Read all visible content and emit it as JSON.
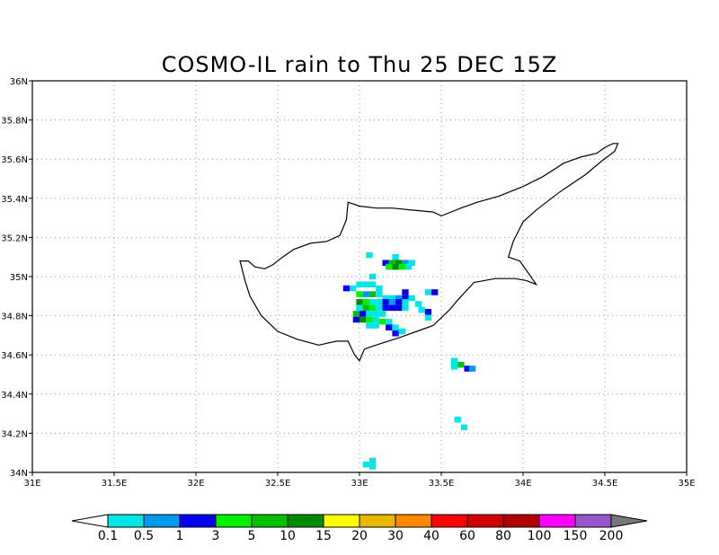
{
  "title": "COSMO-IL rain to Thu 25 DEC 15Z",
  "map": {
    "lon_range": [
      31,
      35
    ],
    "lat_range": [
      34,
      36
    ],
    "lon_ticks": [
      {
        "value": 31.0,
        "label": "31E"
      },
      {
        "value": 31.5,
        "label": "31.5E"
      },
      {
        "value": 32.0,
        "label": "32E"
      },
      {
        "value": 32.5,
        "label": "32.5E"
      },
      {
        "value": 33.0,
        "label": "33E"
      },
      {
        "value": 33.5,
        "label": "33.5E"
      },
      {
        "value": 34.0,
        "label": "34E"
      },
      {
        "value": 34.5,
        "label": "34.5E"
      },
      {
        "value": 35.0,
        "label": "35E"
      }
    ],
    "lat_ticks": [
      {
        "value": 34.0,
        "label": "34N"
      },
      {
        "value": 34.2,
        "label": "34.2N"
      },
      {
        "value": 34.4,
        "label": "34.4N"
      },
      {
        "value": 34.6,
        "label": "34.6N"
      },
      {
        "value": 34.8,
        "label": "34.8N"
      },
      {
        "value": 35.0,
        "label": "35N"
      },
      {
        "value": 35.2,
        "label": "35.2N"
      },
      {
        "value": 35.4,
        "label": "35.4N"
      },
      {
        "value": 35.6,
        "label": "35.6N"
      },
      {
        "value": 35.8,
        "label": "35.8N"
      },
      {
        "value": 36.0,
        "label": "36N"
      }
    ],
    "gridlines": true,
    "coastline": [
      [
        32.27,
        35.08
      ],
      [
        32.32,
        35.08
      ],
      [
        32.36,
        35.05
      ],
      [
        32.42,
        35.04
      ],
      [
        32.47,
        35.06
      ],
      [
        32.53,
        35.1
      ],
      [
        32.6,
        35.14
      ],
      [
        32.7,
        35.17
      ],
      [
        32.8,
        35.18
      ],
      [
        32.88,
        35.21
      ],
      [
        32.92,
        35.29
      ],
      [
        32.93,
        35.38
      ],
      [
        33.0,
        35.36
      ],
      [
        33.1,
        35.35
      ],
      [
        33.2,
        35.35
      ],
      [
        33.32,
        35.34
      ],
      [
        33.45,
        35.33
      ],
      [
        33.5,
        35.31
      ],
      [
        33.62,
        35.35
      ],
      [
        33.72,
        35.38
      ],
      [
        33.85,
        35.41
      ],
      [
        34.0,
        35.46
      ],
      [
        34.12,
        35.51
      ],
      [
        34.25,
        35.58
      ],
      [
        34.35,
        35.61
      ],
      [
        34.45,
        35.63
      ],
      [
        34.5,
        35.66
      ],
      [
        34.55,
        35.68
      ],
      [
        34.58,
        35.68
      ],
      [
        34.56,
        35.64
      ],
      [
        34.48,
        35.59
      ],
      [
        34.38,
        35.52
      ],
      [
        34.22,
        35.43
      ],
      [
        34.08,
        35.34
      ],
      [
        34.0,
        35.28
      ],
      [
        33.94,
        35.18
      ],
      [
        33.91,
        35.1
      ],
      [
        33.98,
        35.08
      ],
      [
        34.08,
        34.96
      ],
      [
        34.02,
        34.98
      ],
      [
        33.95,
        34.99
      ],
      [
        33.83,
        34.99
      ],
      [
        33.7,
        34.97
      ],
      [
        33.6,
        34.88
      ],
      [
        33.55,
        34.83
      ],
      [
        33.45,
        34.75
      ],
      [
        33.35,
        34.72
      ],
      [
        33.25,
        34.69
      ],
      [
        33.1,
        34.65
      ],
      [
        33.03,
        34.63
      ],
      [
        33.0,
        34.57
      ],
      [
        32.97,
        34.6
      ],
      [
        32.93,
        34.67
      ],
      [
        32.86,
        34.67
      ],
      [
        32.75,
        34.65
      ],
      [
        32.62,
        34.68
      ],
      [
        32.5,
        34.72
      ],
      [
        32.4,
        34.8
      ],
      [
        32.33,
        34.9
      ],
      [
        32.3,
        34.98
      ],
      [
        32.27,
        35.08
      ]
    ],
    "rain_cells": [
      {
        "lon": 33.06,
        "lat": 35.11,
        "v": 0.3
      },
      {
        "lon": 33.22,
        "lat": 35.1,
        "v": 0.3
      },
      {
        "lon": 33.16,
        "lat": 35.07,
        "v": 2
      },
      {
        "lon": 33.2,
        "lat": 35.07,
        "v": 8
      },
      {
        "lon": 33.24,
        "lat": 35.07,
        "v": 12
      },
      {
        "lon": 33.28,
        "lat": 35.07,
        "v": 0.7
      },
      {
        "lon": 33.32,
        "lat": 35.07,
        "v": 0.3
      },
      {
        "lon": 33.18,
        "lat": 35.05,
        "v": 4
      },
      {
        "lon": 33.22,
        "lat": 35.05,
        "v": 12
      },
      {
        "lon": 33.26,
        "lat": 35.05,
        "v": 4
      },
      {
        "lon": 33.3,
        "lat": 35.05,
        "v": 0.3
      },
      {
        "lon": 33.08,
        "lat": 35.0,
        "v": 0.3
      },
      {
        "lon": 32.92,
        "lat": 34.94,
        "v": 2
      },
      {
        "lon": 32.96,
        "lat": 34.94,
        "v": 0.3
      },
      {
        "lon": 33.0,
        "lat": 34.96,
        "v": 0.3
      },
      {
        "lon": 33.04,
        "lat": 34.96,
        "v": 0.3
      },
      {
        "lon": 33.08,
        "lat": 34.96,
        "v": 0.3
      },
      {
        "lon": 33.12,
        "lat": 34.94,
        "v": 0.3
      },
      {
        "lon": 33.28,
        "lat": 34.92,
        "v": 2
      },
      {
        "lon": 33.42,
        "lat": 34.92,
        "v": 0.3
      },
      {
        "lon": 33.46,
        "lat": 34.92,
        "v": 2
      },
      {
        "lon": 33.0,
        "lat": 34.91,
        "v": 4
      },
      {
        "lon": 33.04,
        "lat": 34.91,
        "v": 0.7
      },
      {
        "lon": 33.08,
        "lat": 34.91,
        "v": 8
      },
      {
        "lon": 33.12,
        "lat": 34.91,
        "v": 0.3
      },
      {
        "lon": 33.16,
        "lat": 34.89,
        "v": 0.3
      },
      {
        "lon": 33.2,
        "lat": 34.89,
        "v": 0.3
      },
      {
        "lon": 33.24,
        "lat": 34.89,
        "v": 0.7
      },
      {
        "lon": 33.28,
        "lat": 34.89,
        "v": 2
      },
      {
        "lon": 33.32,
        "lat": 34.89,
        "v": 0.3
      },
      {
        "lon": 33.0,
        "lat": 34.87,
        "v": 12
      },
      {
        "lon": 33.04,
        "lat": 34.87,
        "v": 4
      },
      {
        "lon": 33.08,
        "lat": 34.87,
        "v": 0.3
      },
      {
        "lon": 33.12,
        "lat": 34.87,
        "v": 0.3
      },
      {
        "lon": 33.16,
        "lat": 34.87,
        "v": 2
      },
      {
        "lon": 33.2,
        "lat": 34.87,
        "v": 0.7
      },
      {
        "lon": 33.24,
        "lat": 34.87,
        "v": 2
      },
      {
        "lon": 33.28,
        "lat": 34.87,
        "v": 0.3
      },
      {
        "lon": 33.36,
        "lat": 34.86,
        "v": 0.3
      },
      {
        "lon": 33.0,
        "lat": 34.84,
        "v": 0.3
      },
      {
        "lon": 33.04,
        "lat": 34.84,
        "v": 8
      },
      {
        "lon": 33.08,
        "lat": 34.84,
        "v": 4
      },
      {
        "lon": 33.12,
        "lat": 34.84,
        "v": 0.3
      },
      {
        "lon": 33.16,
        "lat": 34.84,
        "v": 2
      },
      {
        "lon": 33.2,
        "lat": 34.84,
        "v": 2
      },
      {
        "lon": 33.24,
        "lat": 34.84,
        "v": 2
      },
      {
        "lon": 33.28,
        "lat": 34.84,
        "v": 0.3
      },
      {
        "lon": 33.38,
        "lat": 34.83,
        "v": 0.3
      },
      {
        "lon": 33.42,
        "lat": 34.82,
        "v": 2
      },
      {
        "lon": 32.98,
        "lat": 34.81,
        "v": 8
      },
      {
        "lon": 33.02,
        "lat": 34.81,
        "v": 2
      },
      {
        "lon": 33.06,
        "lat": 34.81,
        "v": 0.3
      },
      {
        "lon": 33.1,
        "lat": 34.81,
        "v": 0.3
      },
      {
        "lon": 33.14,
        "lat": 34.81,
        "v": 0.3
      },
      {
        "lon": 33.42,
        "lat": 34.79,
        "v": 0.3
      },
      {
        "lon": 32.98,
        "lat": 34.78,
        "v": 2
      },
      {
        "lon": 33.02,
        "lat": 34.78,
        "v": 12
      },
      {
        "lon": 33.06,
        "lat": 34.78,
        "v": 4
      },
      {
        "lon": 33.1,
        "lat": 34.78,
        "v": 0.3
      },
      {
        "lon": 33.14,
        "lat": 34.77,
        "v": 4
      },
      {
        "lon": 33.18,
        "lat": 34.77,
        "v": 0.3
      },
      {
        "lon": 33.06,
        "lat": 34.75,
        "v": 0.3
      },
      {
        "lon": 33.1,
        "lat": 34.75,
        "v": 0.3
      },
      {
        "lon": 33.18,
        "lat": 34.74,
        "v": 2
      },
      {
        "lon": 33.22,
        "lat": 34.74,
        "v": 0.3
      },
      {
        "lon": 33.22,
        "lat": 34.71,
        "v": 2
      },
      {
        "lon": 33.26,
        "lat": 34.72,
        "v": 0.3
      },
      {
        "lon": 33.58,
        "lat": 34.57,
        "v": 0.3
      },
      {
        "lon": 33.62,
        "lat": 34.55,
        "v": 8
      },
      {
        "lon": 33.58,
        "lat": 34.54,
        "v": 0.3
      },
      {
        "lon": 33.66,
        "lat": 34.53,
        "v": 2
      },
      {
        "lon": 33.69,
        "lat": 34.53,
        "v": 0.7
      },
      {
        "lon": 33.6,
        "lat": 34.27,
        "v": 0.3
      },
      {
        "lon": 33.64,
        "lat": 34.23,
        "v": 0.3
      },
      {
        "lon": 33.08,
        "lat": 34.06,
        "v": 0.3
      },
      {
        "lon": 33.04,
        "lat": 34.04,
        "v": 0.3
      },
      {
        "lon": 33.08,
        "lat": 34.03,
        "v": 0.3
      }
    ]
  },
  "colorbar": {
    "labels": [
      "0.1",
      "0.5",
      "1",
      "3",
      "5",
      "10",
      "15",
      "20",
      "30",
      "40",
      "60",
      "80",
      "100",
      "150",
      "200"
    ],
    "colors": [
      "#ffffff",
      "#00e5e5",
      "#0099ee",
      "#0000f0",
      "#00f000",
      "#00c000",
      "#008a00",
      "#ffff00",
      "#e6b800",
      "#ff8800",
      "#ff0000",
      "#d00000",
      "#b00000",
      "#ff00ff",
      "#9955cc",
      "#777777"
    ]
  }
}
